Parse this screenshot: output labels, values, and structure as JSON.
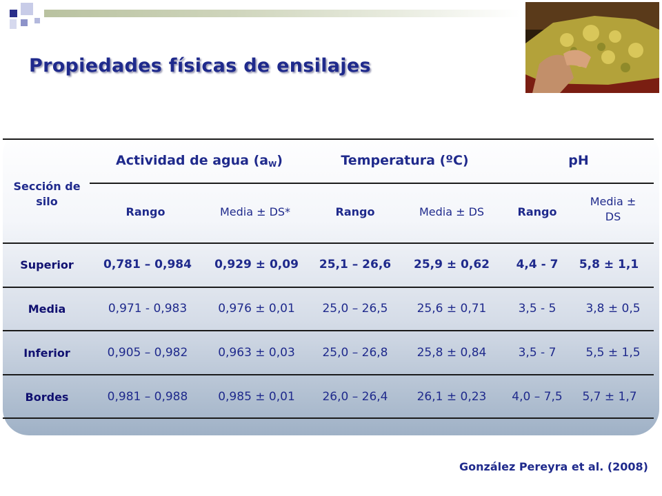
{
  "slide": {
    "title": "Propiedades físicas de ensilajes",
    "source": "González Pereyra et al. (2008)"
  },
  "table": {
    "section_header": "Sección de silo",
    "groups": [
      {
        "label": "Actividad de agua (a",
        "sub": "W",
        "close": ")"
      },
      {
        "label": "Temperatura (ºC)"
      },
      {
        "label": "pH"
      }
    ],
    "subheaders": [
      "Rango",
      "Media ± DS*",
      "Rango",
      "Media ± DS",
      "Rango",
      "Media ± DS"
    ],
    "rows": [
      {
        "label": "Superior",
        "values": [
          "0,781 – 0,984",
          "0,929 ± 0,09",
          "25,1 – 26,6",
          "25,9 ± 0,62",
          "4,4 - 7",
          "5,8 ± 1,1"
        ]
      },
      {
        "label": "Media",
        "values": [
          "0,971 - 0,983",
          "0,976 ± 0,01",
          "25,0 – 26,5",
          "25,6 ± 0,71",
          "3,5 - 5",
          "3,8 ± 0,5"
        ]
      },
      {
        "label": "Inferior",
        "values": [
          "0,905 – 0,982",
          "0,963 ± 0,03",
          "25,0 – 26,8",
          "25,8 ± 0,84",
          "3,5 - 7",
          "5,5 ± 1,5"
        ]
      },
      {
        "label": "Bordes",
        "values": [
          "0,981 – 0,988",
          "0,985 ± 0,01",
          "26,0 – 26,4",
          "26,1 ± 0,23",
          "4,0 – 7,5",
          "5,7 ± 1,7"
        ]
      }
    ]
  }
}
